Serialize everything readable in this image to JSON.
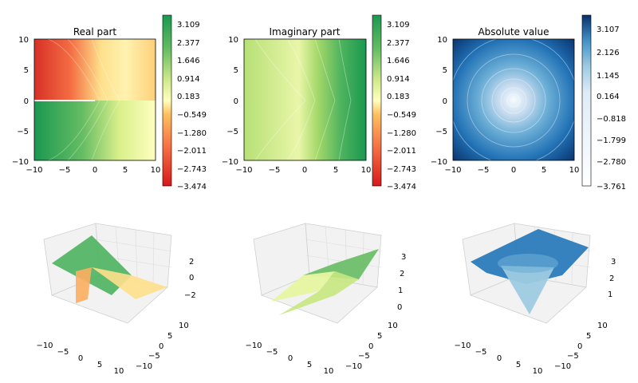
{
  "chart_data": [
    {
      "type": "heatmap",
      "title": "Real part",
      "colormap": "RdYlGn",
      "xticks": [
        "−10",
        "−5",
        "0",
        "5",
        "10"
      ],
      "yticks": [
        "10",
        "5",
        "0",
        "−5",
        "−10"
      ],
      "xlim": [
        -10,
        10
      ],
      "ylim": [
        -10,
        10
      ],
      "colorbar_ticks": [
        "3.109",
        "2.377",
        "1.646",
        "0.914",
        "0.183",
        "−0.549",
        "−1.280",
        "−2.011",
        "−2.743",
        "−3.474"
      ],
      "colorbar_range": [
        -3.474,
        3.475
      ]
    },
    {
      "type": "heatmap",
      "title": "Imaginary part",
      "colormap": "RdYlGn",
      "xticks": [
        "−10",
        "−5",
        "0",
        "5",
        "10"
      ],
      "yticks": [
        "10",
        "5",
        "0",
        "−5",
        "−10"
      ],
      "xlim": [
        -10,
        10
      ],
      "ylim": [
        -10,
        10
      ],
      "colorbar_ticks": [
        "3.109",
        "2.377",
        "1.646",
        "0.914",
        "0.183",
        "−0.549",
        "−1.280",
        "−2.011",
        "−2.743",
        "−3.474"
      ],
      "colorbar_range": [
        -3.474,
        3.475
      ]
    },
    {
      "type": "heatmap",
      "title": "Absolute value",
      "colormap": "Blues",
      "xticks": [
        "−10",
        "−5",
        "0",
        "5",
        "10"
      ],
      "yticks": [
        "10",
        "5",
        "0",
        "−5",
        "−10"
      ],
      "xlim": [
        -10,
        10
      ],
      "ylim": [
        -10,
        10
      ],
      "colorbar_ticks": [
        "3.107",
        "2.126",
        "1.145",
        "0.164",
        "−0.818",
        "−1.799",
        "−2.780",
        "−3.761"
      ],
      "colorbar_range": [
        -3.761,
        3.6
      ]
    },
    {
      "type": "surface",
      "title": "",
      "colormap": "RdYlGn",
      "xticks": [
        "−10",
        "−5",
        "0",
        "5",
        "10"
      ],
      "yticks": [
        "10",
        "5",
        "0",
        "−5",
        "−10"
      ],
      "zticks": [
        "2",
        "0",
        "−2"
      ]
    },
    {
      "type": "surface",
      "title": "",
      "colormap": "RdYlGn",
      "xticks": [
        "−10",
        "−5",
        "0",
        "5",
        "10"
      ],
      "yticks": [
        "10",
        "5",
        "0",
        "−5",
        "−10"
      ],
      "zticks": [
        "3",
        "2",
        "1",
        "0"
      ]
    },
    {
      "type": "surface",
      "title": "",
      "colormap": "Blues",
      "xticks": [
        "−10",
        "−5",
        "0",
        "5",
        "10"
      ],
      "yticks": [
        "10",
        "5",
        "0",
        "−5",
        "−10"
      ],
      "zticks": [
        "3",
        "2",
        "1"
      ]
    }
  ]
}
